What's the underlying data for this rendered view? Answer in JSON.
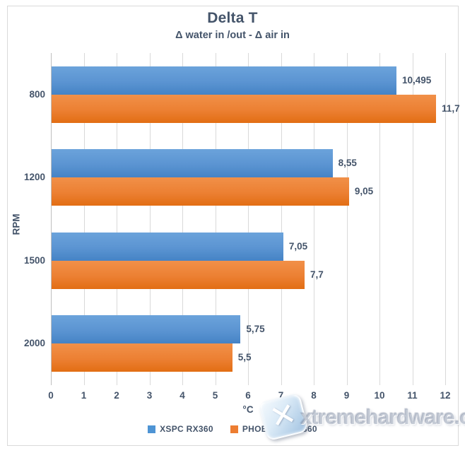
{
  "chart": {
    "title": "Delta T",
    "subtitle": "Δ water in /out - Δ air in",
    "x_axis_title": "°C",
    "y_axis_title": "RPM"
  },
  "chart_data": {
    "type": "bar",
    "orientation": "horizontal",
    "title": "Delta T",
    "subtitle": "Δ water in /out - Δ air in",
    "xlabel": "°C",
    "ylabel": "RPM",
    "categories": [
      "800",
      "1200",
      "1500",
      "2000"
    ],
    "series": [
      {
        "name": "XSPC RX360",
        "values": [
          10.495,
          8.55,
          7.05,
          5.75
        ],
        "value_labels": [
          "10,495",
          "8,55",
          "7,05",
          "5,75"
        ],
        "color_top": "#6ba3db",
        "color_bottom": "#4583c5",
        "legend_color": "#4e94d4"
      },
      {
        "name": "PHOBYA HPC 360",
        "values": [
          11.7,
          9.05,
          7.7,
          5.5
        ],
        "value_labels": [
          "11,7",
          "9,05",
          "7,7",
          "5,5"
        ],
        "color_top": "#f19049",
        "color_bottom": "#e26e13",
        "legend_color": "#ed7d31"
      }
    ],
    "xlim": [
      0,
      12
    ],
    "x_ticks": [
      "0",
      "1",
      "2",
      "3",
      "4",
      "5",
      "6",
      "7",
      "8",
      "9",
      "10",
      "11",
      "12"
    ],
    "grid": true,
    "legend_position": "bottom",
    "label_color": "#44546a",
    "gridline_color": "#d9d9d9"
  },
  "watermark": {
    "text": "xtremehardware.com",
    "logo_glyph": "✕"
  }
}
